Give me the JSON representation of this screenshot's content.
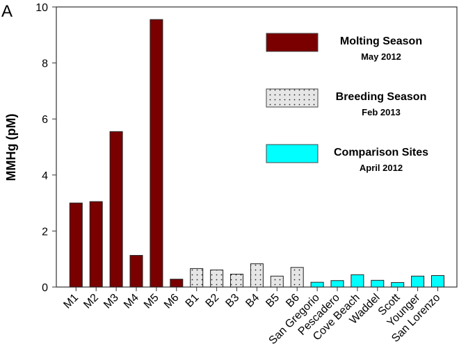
{
  "chart_data": {
    "type": "bar",
    "panel_label": "A",
    "title": "",
    "xlabel": "",
    "ylabel": "MMHg (pM)",
    "ylim": [
      0,
      10
    ],
    "yticks": [
      0,
      2,
      4,
      6,
      8,
      10
    ],
    "grid": false,
    "legend_placement": "top-right",
    "categories": [
      "M1",
      "M2",
      "M3",
      "M4",
      "M5",
      "M6",
      "B1",
      "B2",
      "B3",
      "B4",
      "B5",
      "B6",
      "San Gregorio",
      "Pescadero",
      "Cove Beach",
      "Waddel",
      "Scott",
      "Younger",
      "San Lorenzo"
    ],
    "values": [
      3.0,
      3.05,
      5.55,
      1.13,
      9.55,
      0.28,
      0.66,
      0.61,
      0.46,
      0.83,
      0.39,
      0.7,
      0.17,
      0.23,
      0.44,
      0.24,
      0.16,
      0.39,
      0.41
    ],
    "groups": [
      0,
      0,
      0,
      0,
      0,
      0,
      1,
      1,
      1,
      1,
      1,
      1,
      2,
      2,
      2,
      2,
      2,
      2,
      2
    ],
    "series": [
      {
        "name": "Molting Season",
        "subtitle": "May 2012",
        "color": "#7a0000",
        "pattern": "solid"
      },
      {
        "name": "Breeding Season",
        "subtitle": "Feb 2013",
        "color": "#e6e6e6",
        "pattern": "dots"
      },
      {
        "name": "Comparison Sites",
        "subtitle": "April 2012",
        "color": "#00ffff",
        "pattern": "solid"
      }
    ]
  }
}
